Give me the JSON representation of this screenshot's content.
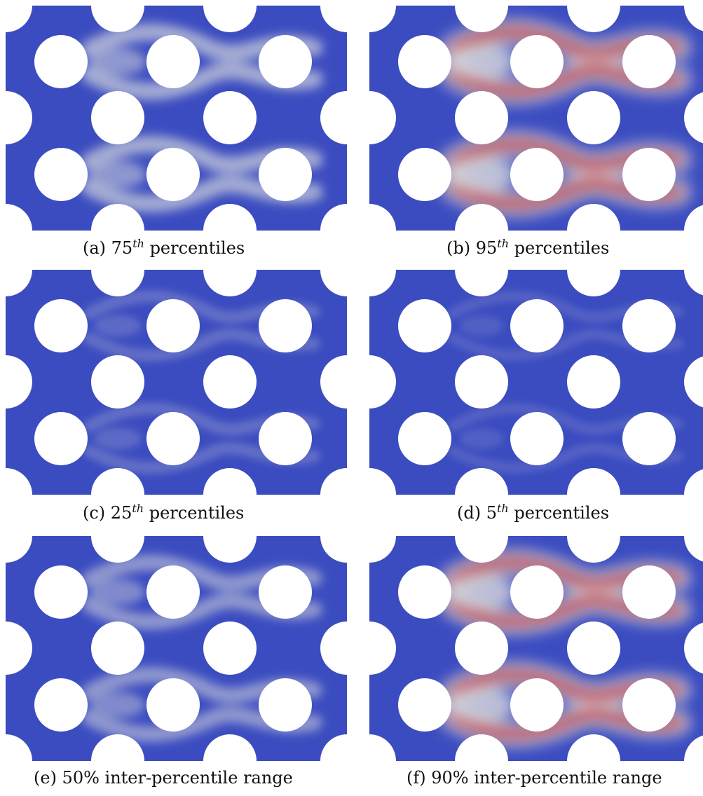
{
  "colors": {
    "low": "#3b4cc0",
    "mid": "#dddddd",
    "high": "#b40426"
  },
  "panels": [
    {
      "key": "a",
      "caption_prefix": "(a) 75",
      "caption_sup": "th",
      "caption_suffix": " percentiles",
      "intensity": 0.55
    },
    {
      "key": "b",
      "caption_prefix": "(b) 95",
      "caption_sup": "th",
      "caption_suffix": " percentiles",
      "intensity": 1.0
    },
    {
      "key": "c",
      "caption_prefix": "(c) 25",
      "caption_sup": "th",
      "caption_suffix": " percentiles",
      "intensity": 0.18
    },
    {
      "key": "d",
      "caption_prefix": "(d) 5",
      "caption_sup": "th",
      "caption_suffix": " percentiles",
      "intensity": 0.06
    },
    {
      "key": "e",
      "caption_prefix": "(e) 50% inter-percentile range",
      "caption_sup": "",
      "caption_suffix": "",
      "intensity": 0.45
    },
    {
      "key": "f",
      "caption_prefix": "(f) 90% inter-percentile range",
      "caption_sup": "",
      "caption_suffix": "",
      "intensity": 0.98
    }
  ]
}
